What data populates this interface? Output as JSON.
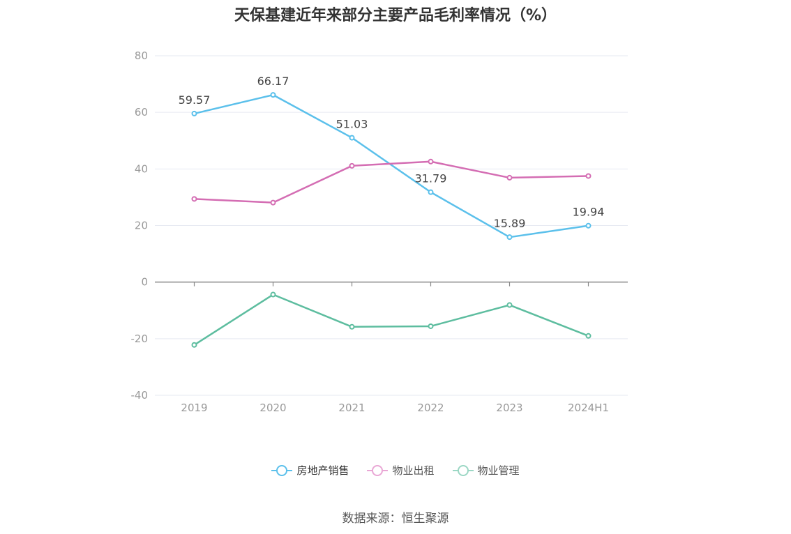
{
  "chart_data": {
    "type": "line",
    "title": "天保基建近年来部分主要产品毛利率情况（%）",
    "categories": [
      "2019",
      "2020",
      "2021",
      "2022",
      "2023",
      "2024H1"
    ],
    "ylim": [
      -40,
      80
    ],
    "yticks": [
      80,
      60,
      40,
      20,
      0,
      -20,
      -40
    ],
    "xlabel": "",
    "ylabel": "",
    "grid": true,
    "legend_position": "bottom",
    "series": [
      {
        "name": "房地产销售",
        "color": "#5bc0eb",
        "labeled": true,
        "values": [
          59.57,
          66.17,
          51.03,
          31.79,
          15.89,
          19.94
        ],
        "labels": [
          "59.57",
          "66.17",
          "51.03",
          "31.79",
          "15.89",
          "19.94"
        ]
      },
      {
        "name": "物业出租",
        "color": "#d46db3",
        "labeled": false,
        "values": [
          29.4,
          28.1,
          41.1,
          42.6,
          36.9,
          37.5
        ]
      },
      {
        "name": "物业管理",
        "color": "#5dbd9f",
        "labeled": false,
        "values": [
          -22.2,
          -4.4,
          -15.8,
          -15.6,
          -8.1,
          -19.0
        ]
      }
    ]
  },
  "legend": {
    "items": [
      {
        "label": "房地产销售",
        "color": "#5bc0eb"
      },
      {
        "label": "物业出租",
        "color": "#e9a7d5"
      },
      {
        "label": "物业管理",
        "color": "#9bd7c4"
      }
    ]
  },
  "source": "数据来源：恒生聚源"
}
